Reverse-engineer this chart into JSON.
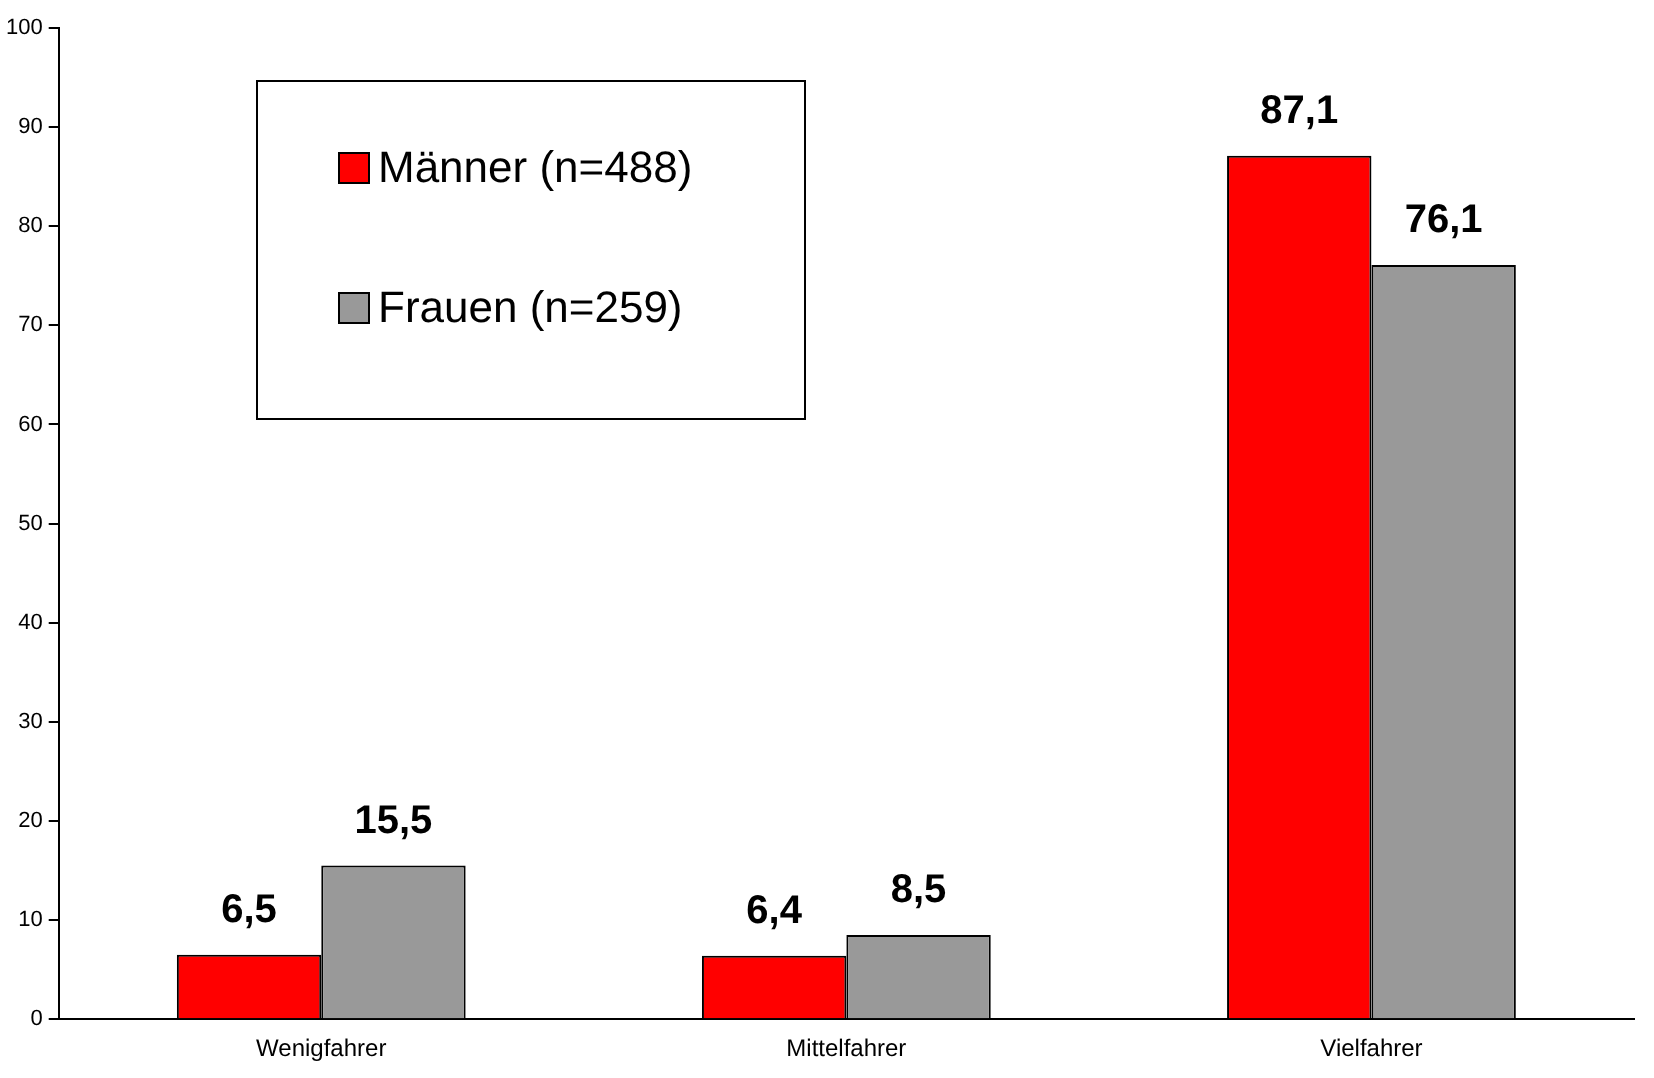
{
  "chart_data": {
    "type": "bar",
    "categories": [
      "Wenigfahrer",
      "Mittelfahrer",
      "Vielfahrer"
    ],
    "series": [
      {
        "name": "Männer (n=488)",
        "color": "#ff0000",
        "values": [
          6.5,
          6.4,
          87.1
        ],
        "value_labels": [
          "6,5",
          "6,4",
          "87,1"
        ]
      },
      {
        "name": "Frauen (n=259)",
        "color": "#999999",
        "values": [
          15.5,
          8.5,
          76.1
        ],
        "value_labels": [
          "15,5",
          "8,5",
          "76,1"
        ]
      }
    ],
    "ylim": [
      0,
      100
    ],
    "yticks": [
      0,
      10,
      20,
      30,
      40,
      50,
      60,
      70,
      80,
      90,
      100
    ],
    "grid": false,
    "legend": "top left"
  }
}
